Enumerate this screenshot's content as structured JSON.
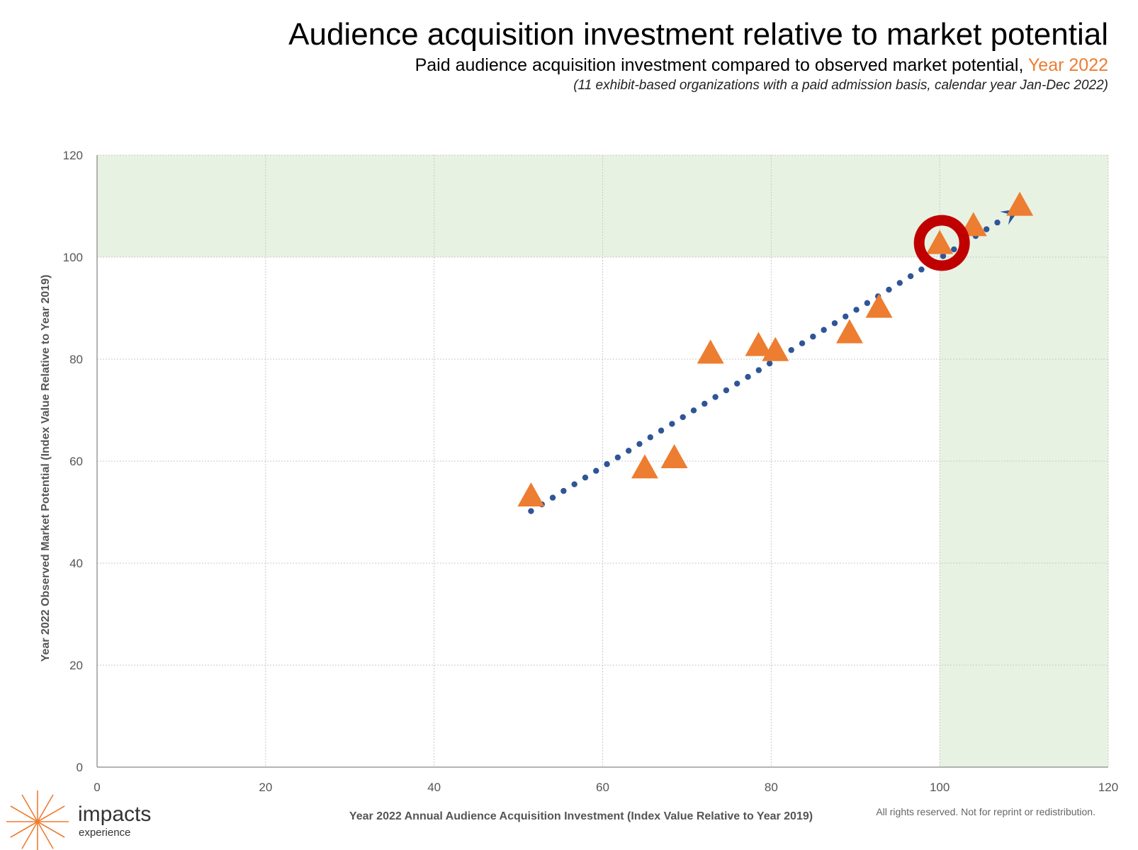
{
  "header": {
    "title": "Audience acquisition investment relative to market potential",
    "subtitle_prefix": "Paid audience acquisition investment compared to observed market potential,",
    "subtitle_year": "Year 2022",
    "note": "(11 exhibit-based organizations with a paid admission basis, calendar year Jan-Dec 2022)"
  },
  "footer": {
    "logo_word": "impacts",
    "logo_sub": "experience",
    "rights": "All rights reserved. Not for reprint or redistribution."
  },
  "colors": {
    "marker": "#ED7D31",
    "trend": "#2F5597",
    "highlight_ring": "#C00000",
    "shaded_region": "#E8F2E3",
    "grid": "#C8C8C8",
    "logo": "#ED7D31"
  },
  "chart_data": {
    "type": "scatter",
    "title": "Audience acquisition investment relative to market potential",
    "xlabel": "Year 2022 Annual Audience Acquisition Investment (Index Value Relative to Year 2019)",
    "ylabel": "Year 2022 Observed Market Potential (Index Value Relative to Year 2019)",
    "xlim": [
      0,
      120
    ],
    "ylim": [
      0,
      120
    ],
    "xticks": [
      0,
      20,
      40,
      60,
      80,
      100,
      120
    ],
    "yticks": [
      0,
      20,
      40,
      60,
      80,
      100,
      120
    ],
    "grid": true,
    "marker": "triangle",
    "points": [
      {
        "x": 51.5,
        "y": 53
      },
      {
        "x": 65,
        "y": 58.5
      },
      {
        "x": 68.5,
        "y": 60.5
      },
      {
        "x": 72.8,
        "y": 81
      },
      {
        "x": 78.5,
        "y": 82.5
      },
      {
        "x": 80.5,
        "y": 81.5
      },
      {
        "x": 89.3,
        "y": 85
      },
      {
        "x": 92.8,
        "y": 90
      },
      {
        "x": 100,
        "y": 102.5
      },
      {
        "x": 104,
        "y": 106
      },
      {
        "x": 109.5,
        "y": 110
      }
    ],
    "trendline": {
      "style": "dotted-arrow",
      "from": {
        "x": 51.5,
        "y": 50.2
      },
      "to": {
        "x": 109.5,
        "y": 109.5
      }
    },
    "highlighted_point": {
      "x": 100,
      "y": 102.5
    },
    "shaded_regions": [
      {
        "x_from": 0,
        "x_to": 120,
        "y_from": 100,
        "y_to": 120
      },
      {
        "x_from": 100,
        "x_to": 120,
        "y_from": 0,
        "y_to": 120
      }
    ]
  }
}
